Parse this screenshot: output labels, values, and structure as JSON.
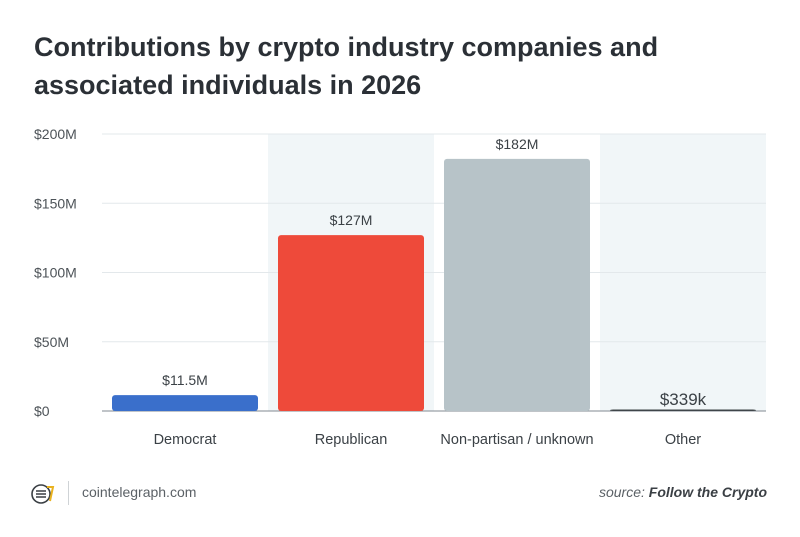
{
  "title": "Contributions by crypto industry companies and associated individuals in 2026",
  "chart_data": {
    "type": "bar",
    "title": "Contributions by crypto industry companies and associated individuals in 2026",
    "categories": [
      "Democrat",
      "Republican",
      "Non-partisan / unknown",
      "Other"
    ],
    "values": [
      11.5,
      127,
      182,
      0.339
    ],
    "value_labels": [
      "$11.5M",
      "$127M",
      "$182M",
      "$339k"
    ],
    "unit": "$M",
    "ylim": [
      0,
      200
    ],
    "yticks": [
      0,
      50,
      100,
      150,
      200
    ],
    "ytick_labels": [
      "$0",
      "$50M",
      "$100M",
      "$150M",
      "$200M"
    ],
    "grid": true,
    "colors": [
      "#3a6fcb",
      "#ee4a3a",
      "#b7c3c8",
      "#3f4549"
    ],
    "band_color": "#f1f6f8"
  },
  "footer": {
    "logo_icon": "cointelegraph-logo-icon",
    "site": "cointelegraph.com",
    "source_prefix": "source: ",
    "source_name": "Follow the Crypto"
  }
}
